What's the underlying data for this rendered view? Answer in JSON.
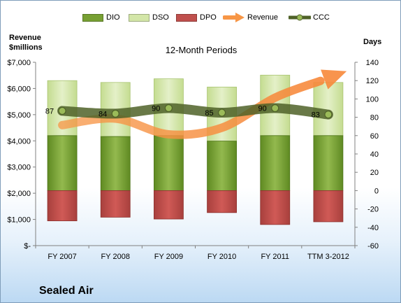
{
  "chart_data": {
    "type": "bar",
    "title": "12-Month Periods",
    "company": "Sealed Air",
    "left_axis_title": [
      "Revenue",
      "$millions"
    ],
    "right_axis_title": "Days",
    "categories": [
      "FY 2007",
      "FY 2008",
      "FY 2009",
      "FY 2010",
      "FY 2011",
      "TTM 3-2012"
    ],
    "left_ylim": [
      0,
      7000
    ],
    "left_ticks": [
      "$-",
      "$1,000",
      "$2,000",
      "$3,000",
      "$4,000",
      "$5,000",
      "$6,000",
      "$7,000"
    ],
    "right_ylim": [
      -60,
      140
    ],
    "right_ticks": [
      "-60",
      "-40",
      "-20",
      "0",
      "20",
      "40",
      "60",
      "80",
      "100",
      "120",
      "140"
    ],
    "grid": false,
    "legend_position": "top",
    "series": [
      {
        "name": "DIO",
        "axis": "days",
        "values": [
          60,
          59,
          60,
          54,
          60,
          60
        ],
        "color": "#77a033"
      },
      {
        "name": "DSO",
        "axis": "days",
        "values": [
          60,
          59,
          62,
          59,
          66,
          58
        ],
        "color": "#d3e6a8"
      },
      {
        "name": "DPO",
        "axis": "days",
        "values": [
          -33,
          -29,
          -31,
          -24,
          -37,
          -34
        ],
        "color": "#c0504d"
      },
      {
        "name": "Revenue",
        "axis": "revenue",
        "values": [
          4600,
          4850,
          4250,
          4500,
          5650,
          6400
        ],
        "color": "#f79646"
      },
      {
        "name": "CCC",
        "axis": "days",
        "values": [
          87,
          84,
          90,
          85,
          90,
          83
        ],
        "color": "#4f6228"
      }
    ],
    "data_labels": {
      "CCC": [
        "87",
        "84",
        "90",
        "85",
        "90",
        "83"
      ]
    }
  }
}
